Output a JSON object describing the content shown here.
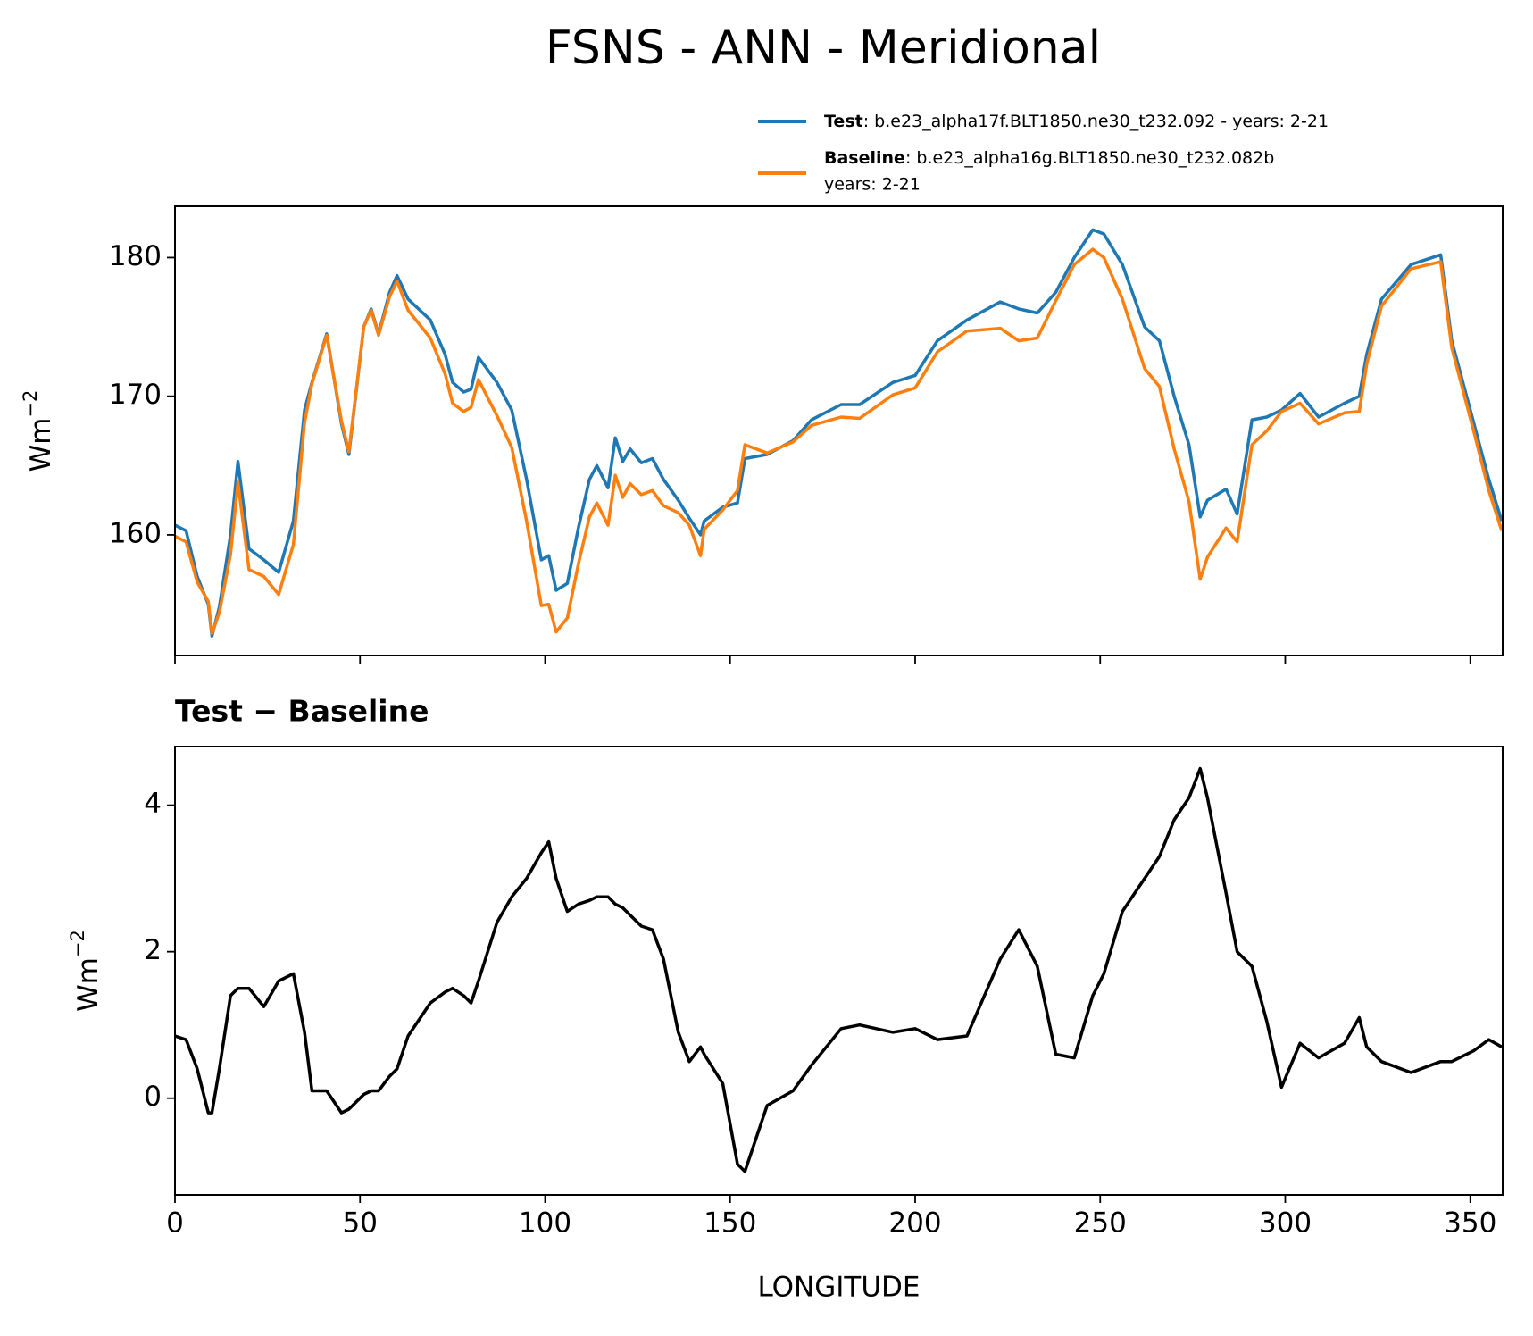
{
  "title": "FSNS - ANN - Meridional",
  "chart_data": [
    {
      "type": "line",
      "ylabel": "Wm",
      "ylabel_sup": "−2",
      "x": [
        0,
        3,
        6,
        9,
        10,
        12,
        15,
        17,
        20,
        24,
        28,
        32,
        35,
        37,
        41,
        45,
        47,
        51,
        53,
        55,
        58,
        60,
        63,
        69,
        73,
        75,
        78,
        80,
        82,
        87,
        91,
        95,
        99,
        101,
        103,
        106,
        109,
        112,
        114,
        117,
        119,
        121,
        123,
        126,
        129,
        132,
        136,
        139,
        142,
        143,
        148,
        152,
        154,
        160,
        167,
        172,
        180,
        185,
        194,
        200,
        206,
        214,
        223,
        228,
        233,
        238,
        243,
        248,
        251,
        256,
        262,
        266,
        270,
        274,
        277,
        279,
        284,
        287,
        291,
        295,
        299,
        304,
        309,
        316,
        320,
        322,
        326,
        334,
        342,
        345,
        351,
        355,
        358.5
      ],
      "series": [
        {
          "name": "Test",
          "legend_text": [
            ": b.e23_alpha17f.BLT1850.ne30_t232.092 - years: 2-21"
          ],
          "color": "#1f77b4",
          "values": [
            160.7,
            160.3,
            157,
            155,
            152.7,
            154.8,
            160,
            165.3,
            159,
            158.2,
            157.3,
            161,
            169,
            171,
            174.5,
            168,
            165.8,
            175,
            176.3,
            174.5,
            177.5,
            178.7,
            177,
            175.5,
            173,
            171,
            170.3,
            170.5,
            172.8,
            171,
            169,
            164,
            158.2,
            158.5,
            156,
            156.5,
            160.5,
            164,
            165,
            163.4,
            167,
            165.3,
            166.2,
            165.2,
            165.5,
            164,
            162.5,
            161.2,
            160,
            161,
            162,
            162.3,
            165.5,
            165.8,
            166.8,
            168.3,
            169.4,
            169.4,
            171,
            171.5,
            174,
            175.5,
            176.8,
            176.3,
            176,
            177.5,
            180,
            182,
            181.7,
            179.5,
            175,
            174,
            170,
            166.5,
            161.3,
            162.5,
            163.3,
            161.5,
            168.3,
            168.5,
            169,
            170.2,
            168.5,
            169.5,
            170,
            173,
            177,
            179.5,
            180.2,
            174,
            168,
            164,
            161
          ]
        },
        {
          "name": "Baseline",
          "legend_text": [
            ": b.e23_alpha16g.BLT1850.ne30_t232.082b",
            "years: 2-21"
          ],
          "color": "#ff7f0e",
          "values": [
            159.9,
            159.5,
            156.6,
            155.2,
            152.9,
            154.4,
            158.6,
            163.8,
            157.5,
            157,
            155.7,
            159.3,
            168.1,
            170.9,
            174.4,
            168.2,
            166,
            175,
            176.2,
            174.4,
            177.2,
            178.3,
            176.2,
            174.2,
            171.6,
            169.5,
            168.9,
            169.2,
            171.2,
            168.6,
            166.3,
            161,
            154.9,
            155,
            153,
            154,
            157.9,
            161.3,
            162.3,
            160.7,
            164.3,
            162.7,
            163.7,
            162.9,
            163.2,
            162.1,
            161.6,
            160.7,
            158.5,
            160.4,
            161.8,
            163.2,
            166.5,
            165.9,
            166.7,
            167.9,
            168.5,
            168.4,
            170.1,
            170.6,
            173.2,
            174.7,
            174.9,
            174,
            174.2,
            176.9,
            179.5,
            180.6,
            180,
            177,
            172,
            170.7,
            166.2,
            162.4,
            156.8,
            158.4,
            160.5,
            159.5,
            166.5,
            167.5,
            168.9,
            169.5,
            168,
            168.8,
            168.9,
            172.3,
            176.5,
            179.2,
            179.7,
            173.5,
            167.4,
            163.2,
            160.3
          ]
        }
      ],
      "xlim": [
        0,
        358.75
      ],
      "xticks": [
        0,
        50,
        100,
        150,
        200,
        250,
        300,
        350
      ],
      "show_xtick_labels": false,
      "ylim": [
        151.3,
        183.7
      ],
      "yticks": [
        160,
        170,
        180
      ]
    },
    {
      "type": "line",
      "title": "Test − Baseline",
      "xlabel": "LONGITUDE",
      "ylabel": "Wm",
      "ylabel_sup": "−2",
      "x": [
        0,
        3,
        6,
        9,
        10,
        12,
        15,
        17,
        20,
        24,
        28,
        32,
        35,
        37,
        41,
        45,
        47,
        51,
        53,
        55,
        58,
        60,
        63,
        69,
        73,
        75,
        78,
        80,
        82,
        87,
        91,
        95,
        99,
        101,
        103,
        106,
        109,
        112,
        114,
        117,
        119,
        121,
        123,
        126,
        129,
        132,
        136,
        139,
        142,
        143,
        148,
        152,
        154,
        160,
        167,
        172,
        180,
        185,
        194,
        200,
        206,
        214,
        223,
        228,
        233,
        238,
        243,
        248,
        251,
        256,
        262,
        266,
        270,
        274,
        277,
        279,
        284,
        287,
        291,
        295,
        299,
        304,
        309,
        316,
        320,
        322,
        326,
        334,
        342,
        345,
        351,
        355,
        358.5
      ],
      "series": [
        {
          "color": "#000000",
          "values": [
            0.85,
            0.8,
            0.4,
            -0.2,
            -0.2,
            0.4,
            1.4,
            1.5,
            1.5,
            1.25,
            1.6,
            1.7,
            0.9,
            0.1,
            0.1,
            -0.2,
            -0.15,
            0.05,
            0.1,
            0.1,
            0.3,
            0.4,
            0.85,
            1.3,
            1.45,
            1.5,
            1.4,
            1.3,
            1.6,
            2.4,
            2.75,
            3.0,
            3.35,
            3.5,
            3.0,
            2.55,
            2.65,
            2.7,
            2.75,
            2.75,
            2.65,
            2.6,
            2.5,
            2.35,
            2.3,
            1.9,
            0.9,
            0.5,
            0.7,
            0.6,
            0.2,
            -0.9,
            -1.0,
            -0.1,
            0.1,
            0.45,
            0.95,
            1.0,
            0.9,
            0.95,
            0.8,
            0.85,
            1.9,
            2.3,
            1.8,
            0.6,
            0.55,
            1.4,
            1.7,
            2.55,
            3.0,
            3.3,
            3.8,
            4.1,
            4.5,
            4.1,
            2.8,
            2.0,
            1.8,
            1.05,
            0.15,
            0.75,
            0.55,
            0.75,
            1.1,
            0.7,
            0.5,
            0.35,
            0.5,
            0.5,
            0.65,
            0.8,
            0.7
          ]
        }
      ],
      "xlim": [
        0,
        358.75
      ],
      "xticks": [
        0,
        50,
        100,
        150,
        200,
        250,
        300,
        350
      ],
      "show_xtick_labels": true,
      "ylim": [
        -1.32,
        4.8
      ],
      "yticks": [
        0,
        2,
        4
      ]
    }
  ]
}
